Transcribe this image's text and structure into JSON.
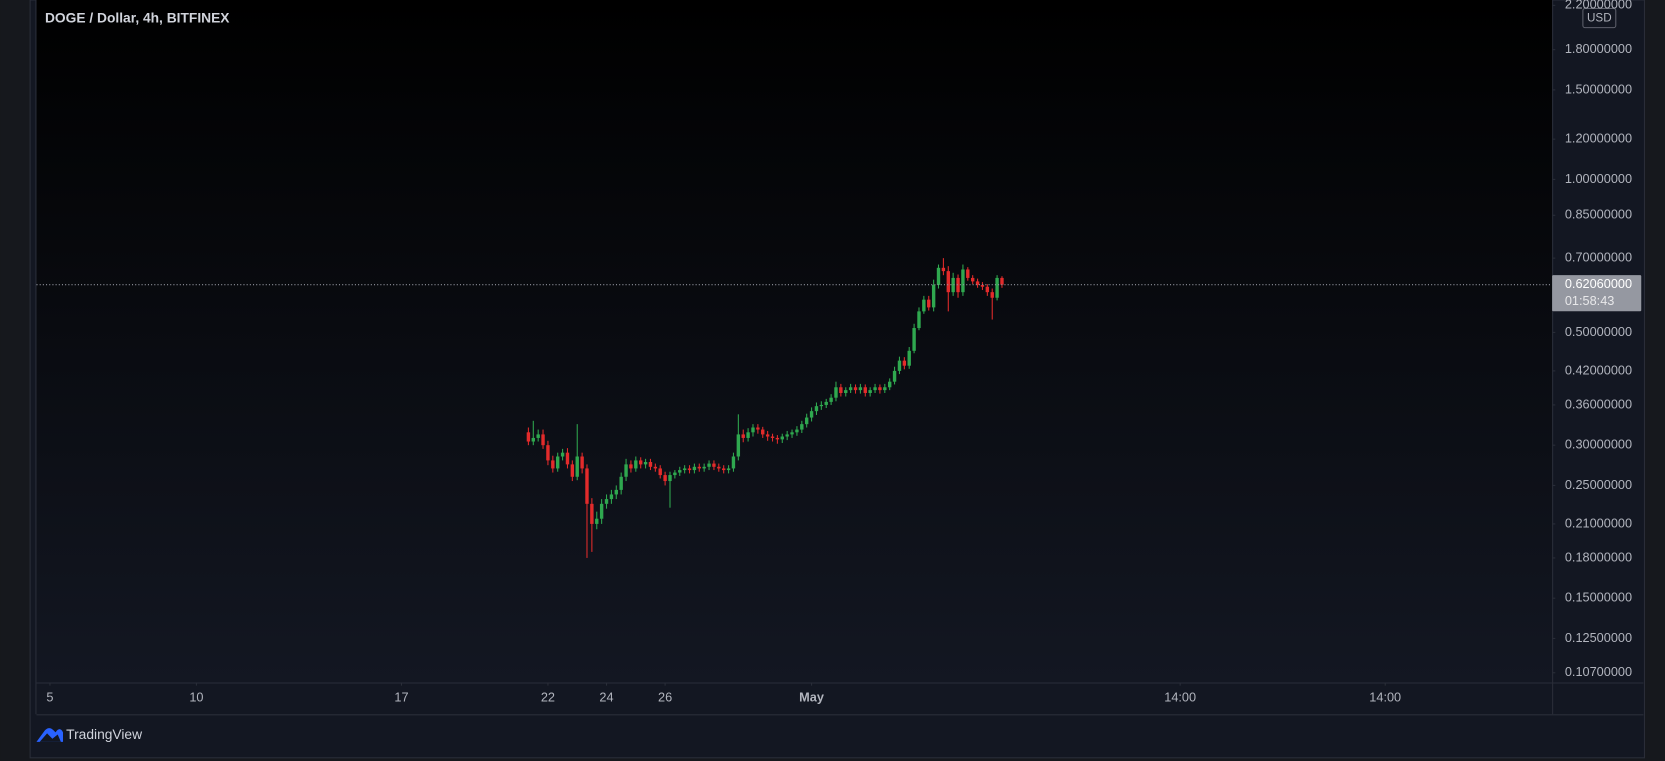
{
  "chart_data": {
    "type": "candlestick",
    "title": "DOGE / Dollar, 4h, BITFINEX",
    "currency": "USD",
    "brand": "TradingView",
    "log_scale": true,
    "up_color": "#2fa84f",
    "down_color": "#e32b2b",
    "xlim": [
      4.54,
      56.28
    ],
    "xticks": [
      22,
      26,
      {
        "value": 31,
        "label": "May"
      },
      5,
      10,
      {
        "value": 43.583,
        "label": "14:00"
      },
      17,
      {
        "value": 50.583,
        "label": "14:00"
      },
      24
    ],
    "ylim": [
      0.1024,
      2.254
    ],
    "yticks": [
      {
        "value": 2.2,
        "label": "2.20000000"
      },
      {
        "value": 1.8,
        "label": "1.80000000"
      },
      {
        "value": 1.5,
        "label": "1.50000000"
      },
      {
        "value": 1.2,
        "label": "1.20000000"
      },
      {
        "value": 1.0,
        "label": "1.00000000"
      },
      {
        "value": 0.85,
        "label": "0.85000000"
      },
      {
        "value": 0.7,
        "label": "0.70000000"
      },
      {
        "value": 0.5,
        "label": "0.50000000"
      },
      {
        "value": 0.42,
        "label": "0.42000000"
      },
      {
        "value": 0.36,
        "label": "0.36000000"
      },
      {
        "value": 0.3,
        "label": "0.30000000"
      },
      {
        "value": 0.25,
        "label": "0.25000000"
      },
      {
        "value": 0.21,
        "label": "0.21000000"
      },
      {
        "value": 0.18,
        "label": "0.18000000"
      },
      {
        "value": 0.15,
        "label": "0.15000000"
      },
      {
        "value": 0.125,
        "label": "0.12500000"
      },
      {
        "value": 0.107,
        "label": "0.10700000"
      }
    ],
    "last_price": {
      "value": 0.6206,
      "label": "0.62060000"
    },
    "countdown": "01:58:43",
    "x": [
      21.333,
      21.5,
      21.667,
      21.833,
      22,
      22.167,
      22.333,
      22.5,
      22.667,
      22.833,
      23,
      23.167,
      23.333,
      23.5,
      23.667,
      23.833,
      24,
      24.167,
      24.333,
      24.5,
      24.667,
      24.833,
      25,
      25.167,
      25.333,
      25.5,
      25.667,
      25.833,
      26,
      26.167,
      26.333,
      26.5,
      26.667,
      26.833,
      27,
      27.167,
      27.333,
      27.5,
      27.667,
      27.833,
      28,
      28.167,
      28.333,
      28.5,
      28.667,
      28.833,
      29,
      29.167,
      29.333,
      29.5,
      29.667,
      29.833,
      30,
      30.167,
      30.333,
      30.5,
      30.667,
      30.833,
      31,
      31.167,
      31.333,
      31.5,
      31.667,
      31.833,
      32,
      32.167,
      32.333,
      32.5,
      32.667,
      32.833,
      33,
      33.167,
      33.333,
      33.5,
      33.667,
      33.833,
      34,
      34.167,
      34.333,
      34.5,
      34.667,
      34.833,
      35,
      35.167,
      35.333,
      35.5,
      35.667,
      35.833,
      36,
      36.167,
      36.333,
      36.5,
      36.667,
      36.833,
      37,
      37.167,
      37.333,
      37.5
    ],
    "open": [
      0.318,
      0.305,
      0.31,
      0.315,
      0.3,
      0.28,
      0.27,
      0.285,
      0.29,
      0.275,
      0.26,
      0.285,
      0.27,
      0.23,
      0.21,
      0.215,
      0.23,
      0.235,
      0.24,
      0.245,
      0.26,
      0.275,
      0.27,
      0.28,
      0.275,
      0.278,
      0.272,
      0.27,
      0.262,
      0.255,
      0.262,
      0.265,
      0.268,
      0.27,
      0.268,
      0.272,
      0.27,
      0.272,
      0.276,
      0.272,
      0.27,
      0.268,
      0.27,
      0.285,
      0.315,
      0.31,
      0.318,
      0.325,
      0.322,
      0.315,
      0.312,
      0.31,
      0.308,
      0.312,
      0.315,
      0.318,
      0.322,
      0.33,
      0.34,
      0.35,
      0.358,
      0.36,
      0.365,
      0.372,
      0.39,
      0.38,
      0.385,
      0.39,
      0.385,
      0.39,
      0.38,
      0.385,
      0.39,
      0.385,
      0.39,
      0.4,
      0.42,
      0.44,
      0.43,
      0.46,
      0.51,
      0.55,
      0.58,
      0.56,
      0.62,
      0.67,
      0.66,
      0.6,
      0.64,
      0.6,
      0.665,
      0.64,
      0.63,
      0.62,
      0.615,
      0.6,
      0.585,
      0.64
    ],
    "high": [
      0.325,
      0.335,
      0.322,
      0.322,
      0.306,
      0.286,
      0.29,
      0.295,
      0.296,
      0.28,
      0.33,
      0.29,
      0.275,
      0.236,
      0.222,
      0.235,
      0.24,
      0.245,
      0.25,
      0.265,
      0.282,
      0.28,
      0.285,
      0.284,
      0.282,
      0.282,
      0.276,
      0.274,
      0.266,
      0.266,
      0.268,
      0.272,
      0.274,
      0.274,
      0.276,
      0.276,
      0.276,
      0.28,
      0.28,
      0.276,
      0.274,
      0.274,
      0.29,
      0.345,
      0.322,
      0.324,
      0.33,
      0.33,
      0.326,
      0.32,
      0.316,
      0.314,
      0.316,
      0.32,
      0.322,
      0.327,
      0.335,
      0.346,
      0.356,
      0.364,
      0.366,
      0.37,
      0.378,
      0.4,
      0.396,
      0.39,
      0.396,
      0.395,
      0.396,
      0.395,
      0.39,
      0.396,
      0.395,
      0.396,
      0.406,
      0.428,
      0.448,
      0.447,
      0.468,
      0.52,
      0.56,
      0.59,
      0.59,
      0.635,
      0.68,
      0.7,
      0.675,
      0.655,
      0.65,
      0.68,
      0.672,
      0.648,
      0.638,
      0.628,
      0.622,
      0.61,
      0.648,
      0.645
    ],
    "low": [
      0.3,
      0.3,
      0.305,
      0.295,
      0.274,
      0.265,
      0.266,
      0.28,
      0.27,
      0.255,
      0.256,
      0.264,
      0.18,
      0.185,
      0.205,
      0.21,
      0.225,
      0.23,
      0.235,
      0.24,
      0.255,
      0.265,
      0.266,
      0.27,
      0.27,
      0.268,
      0.266,
      0.258,
      0.25,
      0.226,
      0.258,
      0.261,
      0.264,
      0.264,
      0.264,
      0.266,
      0.266,
      0.268,
      0.268,
      0.266,
      0.264,
      0.264,
      0.266,
      0.28,
      0.304,
      0.305,
      0.312,
      0.316,
      0.31,
      0.306,
      0.305,
      0.302,
      0.303,
      0.307,
      0.31,
      0.313,
      0.317,
      0.325,
      0.334,
      0.344,
      0.352,
      0.355,
      0.36,
      0.366,
      0.374,
      0.374,
      0.38,
      0.379,
      0.379,
      0.374,
      0.374,
      0.38,
      0.379,
      0.38,
      0.385,
      0.395,
      0.414,
      0.423,
      0.424,
      0.455,
      0.505,
      0.544,
      0.552,
      0.55,
      0.61,
      0.648,
      0.55,
      0.59,
      0.585,
      0.59,
      0.632,
      0.622,
      0.612,
      0.606,
      0.59,
      0.53,
      0.578,
      0.612
    ],
    "close": [
      0.305,
      0.31,
      0.315,
      0.3,
      0.28,
      0.27,
      0.285,
      0.29,
      0.275,
      0.26,
      0.285,
      0.27,
      0.23,
      0.21,
      0.215,
      0.23,
      0.235,
      0.24,
      0.245,
      0.26,
      0.275,
      0.27,
      0.28,
      0.275,
      0.278,
      0.272,
      0.27,
      0.262,
      0.255,
      0.262,
      0.265,
      0.268,
      0.27,
      0.268,
      0.272,
      0.27,
      0.272,
      0.276,
      0.272,
      0.27,
      0.268,
      0.27,
      0.285,
      0.315,
      0.31,
      0.318,
      0.325,
      0.322,
      0.315,
      0.312,
      0.31,
      0.308,
      0.312,
      0.315,
      0.318,
      0.322,
      0.33,
      0.34,
      0.35,
      0.358,
      0.36,
      0.365,
      0.372,
      0.39,
      0.38,
      0.385,
      0.39,
      0.385,
      0.39,
      0.38,
      0.385,
      0.39,
      0.385,
      0.39,
      0.4,
      0.42,
      0.44,
      0.43,
      0.46,
      0.51,
      0.55,
      0.58,
      0.56,
      0.62,
      0.67,
      0.66,
      0.6,
      0.64,
      0.6,
      0.665,
      0.64,
      0.63,
      0.62,
      0.615,
      0.6,
      0.585,
      0.64,
      0.6206
    ]
  }
}
